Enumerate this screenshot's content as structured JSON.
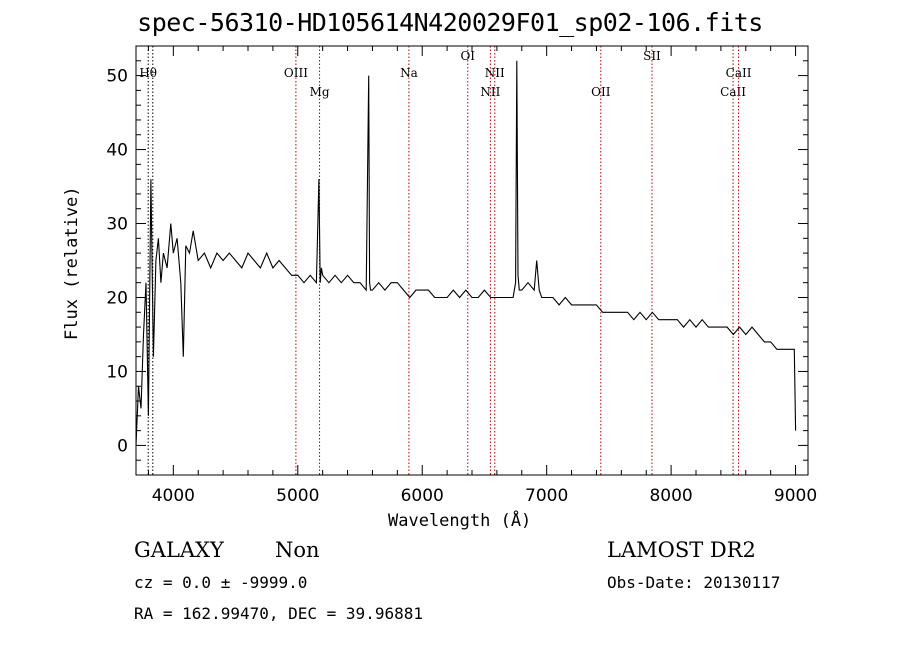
{
  "title": "spec-56310-HD105614N420029F01_sp02-106.fits",
  "chart_data": {
    "type": "line",
    "title": "spec-56310-HD105614N420029F01_sp02-106.fits",
    "xlabel": "Wavelength (Å)",
    "ylabel": "Flux (relative)",
    "xlim": [
      3700,
      9100
    ],
    "ylim": [
      -4,
      54
    ],
    "xticks": [
      4000,
      5000,
      6000,
      7000,
      8000,
      9000
    ],
    "yticks": [
      0,
      10,
      20,
      30,
      40,
      50
    ],
    "grid": false,
    "line_markers": [
      {
        "label": "Hθ",
        "x": 3798,
        "row": 1,
        "style": "black"
      },
      {
        "label": "",
        "x": 3835,
        "row": 1,
        "style": "black"
      },
      {
        "label": "OIII",
        "x": 4985,
        "row": 1,
        "style": "red"
      },
      {
        "label": "Mg",
        "x": 5175,
        "row": 2,
        "style": "red"
      },
      {
        "label": "Na",
        "x": 5893,
        "row": 1,
        "style": "red"
      },
      {
        "label": "OI",
        "x": 6366,
        "row": 0,
        "style": "red"
      },
      {
        "label": "NII",
        "x": 6548,
        "row": 2,
        "style": "red"
      },
      {
        "label": "NII",
        "x": 6583,
        "row": 1,
        "style": "red"
      },
      {
        "label": "OII",
        "x": 7435,
        "row": 2,
        "style": "red"
      },
      {
        "label": "SII",
        "x": 7846,
        "row": 0,
        "style": "red"
      },
      {
        "label": "CaII",
        "x": 8498,
        "row": 2,
        "style": "red"
      },
      {
        "label": "CaII",
        "x": 8542,
        "row": 1,
        "style": "red"
      }
    ],
    "series": [
      {
        "values_x": [
          3700,
          3720,
          3740,
          3760,
          3780,
          3800,
          3820,
          3840,
          3860,
          3880,
          3900,
          3920,
          3950,
          3980,
          4000,
          4030,
          4060,
          4080,
          4100,
          4130,
          4160,
          4200,
          4250,
          4300,
          4350,
          4400,
          4450,
          4500,
          4550,
          4600,
          4650,
          4700,
          4750,
          4800,
          4850,
          4900,
          4950,
          5000,
          5050,
          5100,
          5150,
          5170,
          5180,
          5190,
          5200,
          5250,
          5300,
          5350,
          5400,
          5450,
          5500,
          5550,
          5570,
          5577,
          5584,
          5600,
          5650,
          5700,
          5750,
          5800,
          5850,
          5900,
          5950,
          6000,
          6050,
          6100,
          6150,
          6200,
          6250,
          6300,
          6350,
          6400,
          6450,
          6500,
          6550,
          6600,
          6650,
          6700,
          6730,
          6750,
          6760,
          6770,
          6780,
          6800,
          6850,
          6900,
          6920,
          6940,
          6960,
          7000,
          7050,
          7100,
          7150,
          7200,
          7250,
          7300,
          7350,
          7400,
          7450,
          7500,
          7550,
          7600,
          7650,
          7700,
          7750,
          7800,
          7850,
          7900,
          7950,
          8000,
          8050,
          8100,
          8150,
          8200,
          8250,
          8300,
          8350,
          8400,
          8450,
          8500,
          8550,
          8600,
          8650,
          8700,
          8750,
          8800,
          8850,
          8900,
          8950,
          8990,
          9000
        ],
        "values_y": [
          0,
          8,
          5,
          15,
          22,
          4,
          36,
          12,
          25,
          28,
          22,
          26,
          24,
          30,
          26,
          28,
          22,
          12,
          27,
          26,
          29,
          25,
          26,
          24,
          26,
          25,
          26,
          25,
          24,
          26,
          25,
          24,
          26,
          24,
          25,
          24,
          23,
          23,
          22,
          23,
          22,
          36,
          22,
          24,
          23,
          22,
          23,
          22,
          23,
          22,
          22,
          21,
          50,
          22,
          21,
          21,
          22,
          21,
          22,
          22,
          21,
          20,
          21,
          21,
          21,
          20,
          20,
          20,
          21,
          20,
          21,
          20,
          20,
          21,
          20,
          20,
          20,
          20,
          20,
          22,
          52,
          23,
          21,
          21,
          22,
          21,
          25,
          21,
          20,
          20,
          20,
          19,
          20,
          19,
          19,
          19,
          19,
          19,
          18,
          18,
          18,
          18,
          18,
          17,
          18,
          17,
          18,
          17,
          17,
          17,
          17,
          16,
          17,
          16,
          17,
          16,
          16,
          16,
          16,
          15,
          16,
          15,
          16,
          15,
          14,
          14,
          13,
          13,
          13,
          13,
          2
        ]
      }
    ]
  },
  "info": {
    "object_class": "GALAXY",
    "subclass": "Non",
    "cz": "cz = 0.0 ± -9999.0",
    "radec": "RA = 162.99470, DEC =  39.96881",
    "survey": "LAMOST DR2",
    "obs_date": "Obs-Date: 20130117"
  }
}
